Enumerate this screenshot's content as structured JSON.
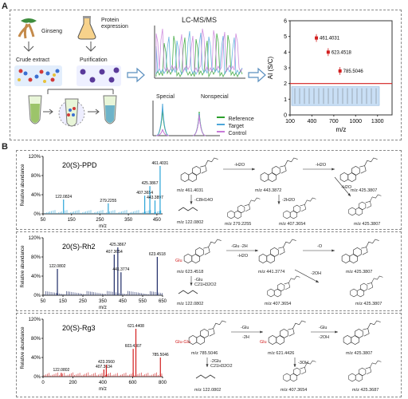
{
  "panel_a": {
    "label": "A",
    "ginseng": "Ginseng",
    "protein_expression": "Protein\nexpression",
    "crude_extract": "Crude extract",
    "purification": "Purification",
    "lcms_title": "LC-MS/MS",
    "special": "Special",
    "nonspecial": "Nonspecial",
    "legend": [
      "Reference",
      "Target",
      "Control"
    ],
    "legend_colors": [
      "#2ca02c",
      "#4da6d9",
      "#c77ad8"
    ]
  },
  "panel_b": {
    "label": "B",
    "spectra": [
      {
        "name": "20(S)-PPD",
        "color": "#2aa4d8",
        "peaks": [
          "122.0824",
          "279.2255",
          "407.3654",
          "425.3867",
          "443.3897",
          "461.4031"
        ]
      },
      {
        "name": "20(S)-Rh2",
        "color": "#1d2a66",
        "peaks": [
          "122.0802",
          "407.3654",
          "425.3867",
          "441.3774",
          "623.4518"
        ]
      },
      {
        "name": "20(S)-Rg3",
        "color": "#d21f1f",
        "peaks": [
          "122.0802",
          "407.3634",
          "423.3560",
          "603.4307",
          "621.4408",
          "785.5046"
        ]
      }
    ],
    "ylabel": "Relative abundance",
    "xlabel": "m/z",
    "yticks": [
      "0%",
      "40%",
      "80%",
      "120%"
    ],
    "xticks_1": [
      "50",
      "100",
      "150",
      "200",
      "250",
      "300",
      "350",
      "400",
      "450"
    ],
    "xticks_2": [
      "50",
      "350",
      "650"
    ],
    "xticks_2_full": [
      "50",
      "150",
      "250",
      "350",
      "450",
      "550",
      "650"
    ],
    "xticks_3": [
      "0",
      "200",
      "400",
      "600",
      "800"
    ],
    "pathway_ppd": [
      "m/z 461.4031",
      "-H2O",
      "m/z 443.3872",
      "-H2O",
      "m/z 425.3807",
      "-C8H14O",
      "-2H2O",
      "-H2O",
      "m/z 425.3807",
      "m/z 122.0802",
      "m/z 279.2255",
      "m/z 407.3654"
    ],
    "pathway_rh2": [
      "Glu",
      "-Glu -2H",
      "m/z 623.4518",
      "-H2O",
      "m/z 441.3774",
      "-O",
      "m/z 425.3807",
      "-Glu",
      "C21H32O2",
      "-2OH",
      "m/z 425.3807",
      "m/z 407.3654",
      "m/z 122.0802"
    ],
    "pathway_rg3": [
      "Glu-Glu",
      "-Glu",
      "-2H",
      "m/z 785.5046",
      "Glu",
      "m/z 621.4426",
      "-Glu",
      "-2OH",
      "m/z 425.3807",
      "-2Glu",
      "C21H32O2",
      "-3OH",
      "m/z 122.0802",
      "m/z 407.3654",
      "m/z 425.3687"
    ]
  },
  "chart_data": [
    {
      "type": "scatter",
      "xlabel": "m/z",
      "ylabel": "AI (S/C)",
      "xlim": [
        100,
        1500
      ],
      "ylim": [
        0,
        6
      ],
      "xticks": [
        100,
        400,
        700,
        1000,
        1300
      ],
      "yticks": [
        0,
        1,
        2,
        3,
        4,
        5,
        6
      ],
      "threshold": 2,
      "points": [
        {
          "x": 461.4031,
          "y": 4.9,
          "label": "461.4031"
        },
        {
          "x": 623.4518,
          "y": 4.0,
          "label": "623.4518"
        },
        {
          "x": 785.5046,
          "y": 2.8,
          "label": "785.5046"
        }
      ]
    },
    {
      "type": "bar",
      "title": "20(S)-PPD",
      "xlabel": "m/z",
      "ylabel": "Relative abundance",
      "xlim": [
        50,
        470
      ],
      "ylim": [
        0,
        120
      ],
      "peaks": [
        {
          "x": 122.0824,
          "y": 30,
          "label": "122.0824"
        },
        {
          "x": 279.2255,
          "y": 22,
          "label": "279.2255"
        },
        {
          "x": 407.3654,
          "y": 38,
          "label": "407.3654"
        },
        {
          "x": 425.3867,
          "y": 58,
          "label": "425.3867"
        },
        {
          "x": 443.3897,
          "y": 28,
          "label": "443.3897"
        },
        {
          "x": 461.4031,
          "y": 100,
          "label": "461.4031"
        }
      ]
    },
    {
      "type": "bar",
      "title": "20(S)-Rh2",
      "xlabel": "m/z",
      "ylabel": "Relative abundance",
      "xlim": [
        50,
        650
      ],
      "ylim": [
        0,
        120
      ],
      "peaks": [
        {
          "x": 122.0802,
          "y": 55,
          "label": "122.0802"
        },
        {
          "x": 407.3654,
          "y": 85,
          "label": "407.3654"
        },
        {
          "x": 425.3867,
          "y": 100,
          "label": "425.3867"
        },
        {
          "x": 441.3774,
          "y": 48,
          "label": "441.3774"
        },
        {
          "x": 623.4518,
          "y": 80,
          "label": "623.4518"
        }
      ]
    },
    {
      "type": "bar",
      "title": "20(S)-Rg3",
      "xlabel": "m/z",
      "ylabel": "Relative abundance",
      "xlim": [
        0,
        800
      ],
      "ylim": [
        0,
        120
      ],
      "peaks": [
        {
          "x": 122.0802,
          "y": 8,
          "label": "122.0802"
        },
        {
          "x": 407.3634,
          "y": 15,
          "label": "407.3634"
        },
        {
          "x": 423.356,
          "y": 25,
          "label": "423.3560"
        },
        {
          "x": 603.4307,
          "y": 58,
          "label": "603.4307"
        },
        {
          "x": 621.4408,
          "y": 100,
          "label": "621.4408"
        },
        {
          "x": 785.5046,
          "y": 40,
          "label": "785.5046"
        }
      ]
    }
  ]
}
